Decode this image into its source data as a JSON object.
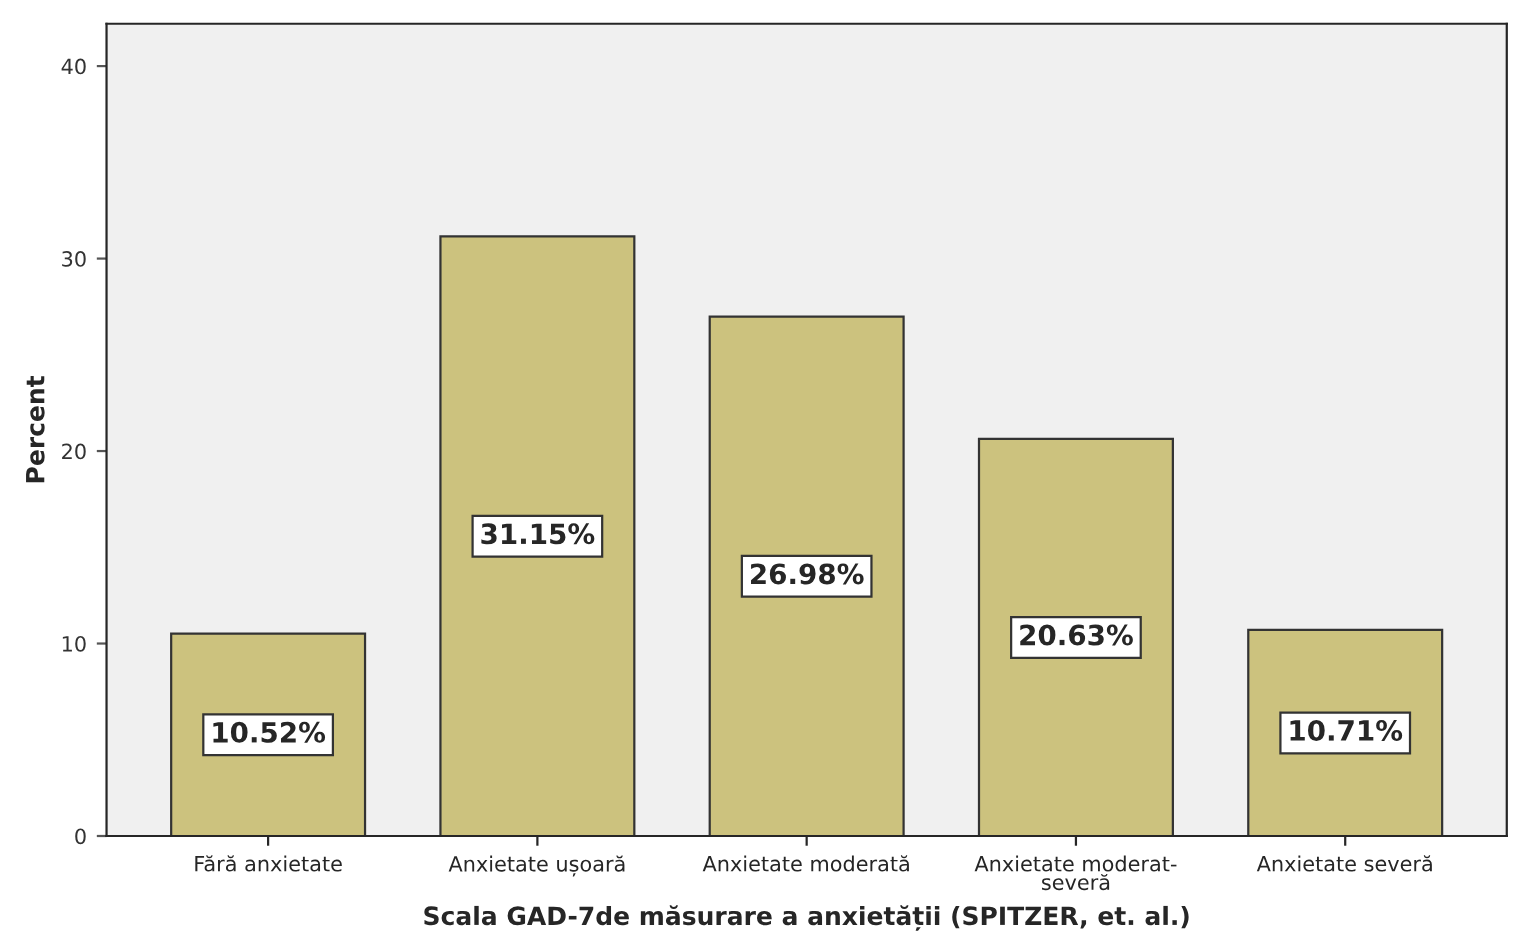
{
  "chart_data": {
    "type": "bar",
    "xlabel": "Scala GAD-7de măsurare a anxietății (SPITZER, et. al.)",
    "ylabel": "Percent",
    "categories": [
      "Fără anxietate",
      "Anxietate ușoară",
      "Anxietate moderată",
      "Anxietate moderat-\nseveră",
      "Anxietate severă"
    ],
    "values": [
      10.52,
      31.15,
      26.98,
      20.63,
      10.71
    ],
    "value_labels": [
      "10.52%",
      "31.15%",
      "26.98%",
      "20.63%",
      "10.71%"
    ],
    "color": "#ccc27e",
    "ylim": [
      0,
      42.2
    ],
    "yticks": [
      0,
      10,
      20,
      30,
      40
    ],
    "grid": false,
    "legend": false
  }
}
